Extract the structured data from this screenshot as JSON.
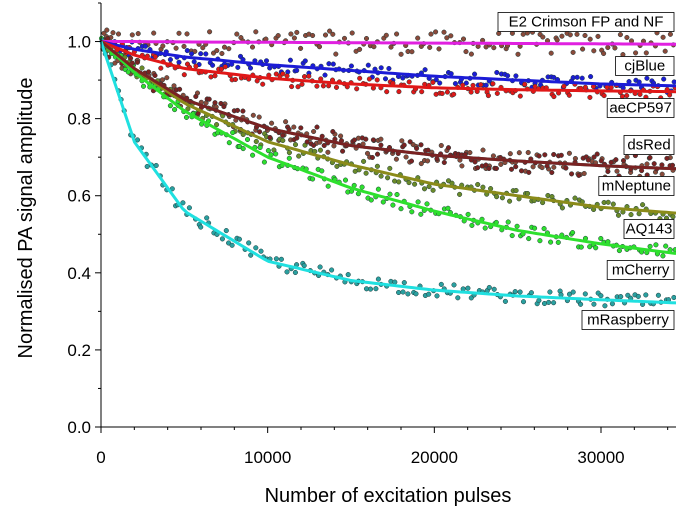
{
  "chart_data": {
    "type": "scatter",
    "title": "",
    "xlabel": "Number of excitation pulses",
    "ylabel": "Normalised PA signal amplitude",
    "xlim": [
      0,
      34500
    ],
    "ylim": [
      0,
      1.1
    ],
    "x_ticks": [
      0,
      10000,
      20000,
      30000
    ],
    "x_tick_labels": [
      "0",
      "10000",
      "20000",
      "30000"
    ],
    "y_ticks": [
      0.0,
      0.2,
      0.4,
      0.6,
      0.8,
      1.0
    ],
    "y_tick_labels": [
      "0.0",
      "0.2",
      "0.4",
      "0.6",
      "0.8",
      "1.0"
    ],
    "grid": false,
    "legend": "series labels placed at right end of each curve",
    "series": [
      {
        "name": "E2 Crimson FP and NF",
        "color": "#e020e0",
        "point_color": "#8a4a3a",
        "x": [
          0,
          2000,
          5000,
          10000,
          15000,
          20000,
          25000,
          30000,
          34500
        ],
        "values": [
          1.0,
          1.0,
          0.999,
          0.998,
          0.997,
          0.996,
          0.995,
          0.994,
          0.993
        ]
      },
      {
        "name": "cjBlue",
        "color": "#1c1cd6",
        "point_color": "#1c1cd6",
        "x": [
          0,
          2000,
          5000,
          10000,
          15000,
          20000,
          25000,
          30000,
          34500
        ],
        "values": [
          1.0,
          0.98,
          0.96,
          0.94,
          0.925,
          0.91,
          0.9,
          0.89,
          0.885
        ]
      },
      {
        "name": "aeCP597",
        "color": "#e01818",
        "point_color": "#e01818",
        "x": [
          0,
          2000,
          5000,
          10000,
          15000,
          20000,
          25000,
          30000,
          34500
        ],
        "values": [
          1.0,
          0.965,
          0.93,
          0.905,
          0.89,
          0.88,
          0.875,
          0.872,
          0.87
        ]
      },
      {
        "name": "dsRed",
        "color": "#1e7a7a",
        "point_color": "#8a4a3a",
        "x": [
          0,
          2000,
          5000,
          10000,
          15000,
          20000,
          25000,
          30000,
          34500
        ],
        "values": [
          1.0,
          0.93,
          0.85,
          0.775,
          0.73,
          0.705,
          0.69,
          0.678,
          0.67
        ]
      },
      {
        "name": "mNeptune",
        "color": "#8b8b1a",
        "point_color": "#6b8a2a",
        "x": [
          0,
          2000,
          5000,
          10000,
          15000,
          20000,
          25000,
          30000,
          34500
        ],
        "values": [
          1.0,
          0.93,
          0.84,
          0.74,
          0.68,
          0.63,
          0.6,
          0.57,
          0.555
        ]
      },
      {
        "name": "AQ143",
        "color": "#2ee02e",
        "point_color": "#2ee02e",
        "x": [
          0,
          2000,
          5000,
          10000,
          15000,
          20000,
          25000,
          30000,
          34500
        ],
        "values": [
          1.0,
          0.92,
          0.82,
          0.7,
          0.62,
          0.56,
          0.51,
          0.475,
          0.45
        ]
      },
      {
        "name": "mCherry",
        "color": "#7a2222",
        "point_color": "#7a2222",
        "x": [
          0,
          2000,
          5000,
          10000,
          15000,
          20000,
          25000,
          30000,
          34500
        ],
        "values": [
          1.0,
          0.93,
          0.85,
          0.775,
          0.73,
          0.705,
          0.69,
          0.678,
          0.67
        ]
      },
      {
        "name": "mRaspberry",
        "color": "#20e0e0",
        "point_color": "#2aa0a0",
        "x": [
          0,
          2000,
          5000,
          10000,
          15000,
          20000,
          25000,
          30000,
          34500
        ],
        "values": [
          1.0,
          0.74,
          0.56,
          0.43,
          0.38,
          0.355,
          0.34,
          0.33,
          0.322
        ]
      }
    ],
    "annotations": [
      {
        "text": "E2 Crimson FP and NF",
        "series": 0
      },
      {
        "text": "cjBlue",
        "series": 1
      },
      {
        "text": "aeCP597",
        "series": 2
      },
      {
        "text": "dsRed",
        "series": 3
      },
      {
        "text": "mNeptune",
        "series": 4
      },
      {
        "text": "AQ143",
        "series": 5
      },
      {
        "text": "mCherry",
        "series": 6
      },
      {
        "text": "mRaspberry",
        "series": 7
      }
    ]
  }
}
